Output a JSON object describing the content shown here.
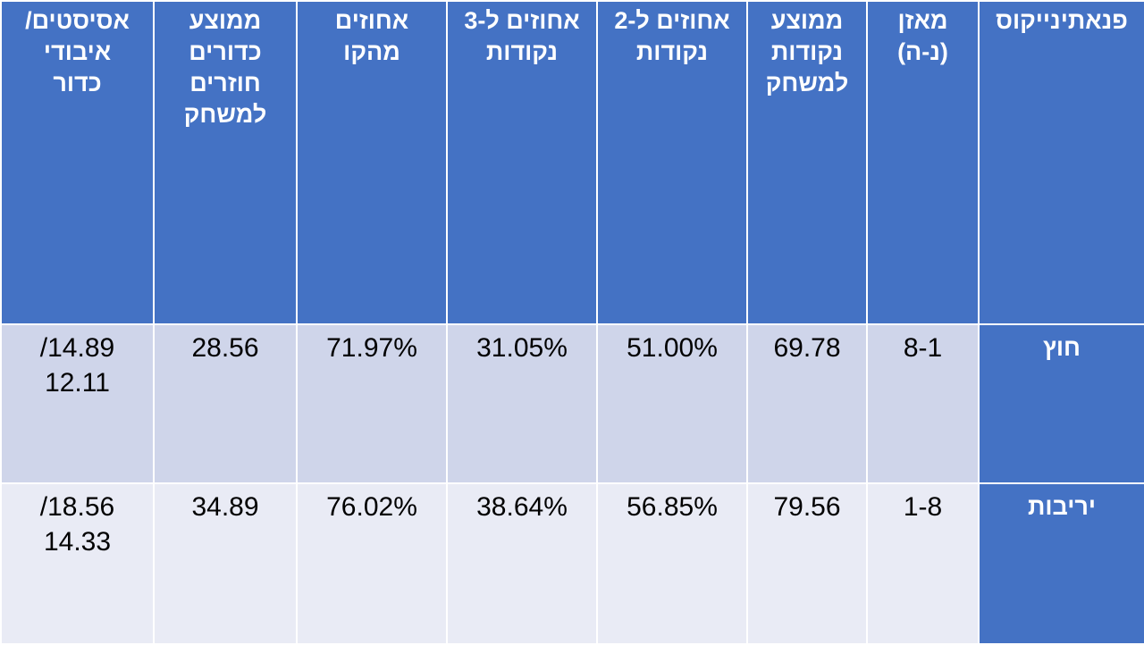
{
  "table": {
    "headers": [
      [
        "פנאתינייקוס"
      ],
      [
        "מאזן",
        "(נ-ה)"
      ],
      [
        "ממוצע",
        "נקודות",
        "למשחק"
      ],
      [
        "אחוזים ל-2",
        "נקודות"
      ],
      [
        "אחוזים ל-3",
        "נקודות"
      ],
      [
        "אחוזים",
        "מהקו"
      ],
      [
        "ממוצע",
        "כדורים",
        "חוזרים",
        "למשחק"
      ],
      [
        "אסיסטים/",
        "איבודי",
        "כדור"
      ]
    ],
    "rows": [
      {
        "label": "חוץ",
        "record": "8-1",
        "avg_points": "69.78",
        "two_pt_pct": "51.00%",
        "three_pt_pct": "31.05%",
        "ft_pct": "71.97%",
        "avg_rebounds": "28.56",
        "assists_turnovers": [
          "/14.89",
          "12.11"
        ]
      },
      {
        "label": "יריבות",
        "record": "1-8",
        "avg_points": "79.56",
        "two_pt_pct": "56.85%",
        "three_pt_pct": "38.64%",
        "ft_pct": "76.02%",
        "avg_rebounds": "34.89",
        "assists_turnovers": [
          "/18.56",
          "14.33"
        ]
      }
    ]
  }
}
